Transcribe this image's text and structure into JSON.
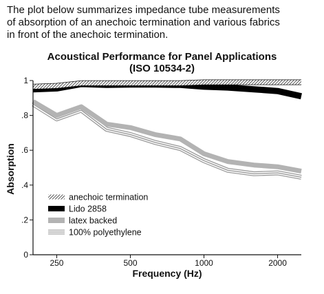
{
  "intro": {
    "line1": "The plot below summarizes impedance tube measurements",
    "line2": "of absorption of an anechoic termination and various fabrics",
    "line3": "in front of the anechoic termination."
  },
  "chart_data": {
    "type": "line",
    "title": "Acoustical Performance for Panel Applications",
    "subtitle": "(ISO 10534-2)",
    "xlabel": "Frequency (Hz)",
    "ylabel": "Absorption",
    "x_scale": "log",
    "xlim": [
      200,
      2500
    ],
    "ylim": [
      0,
      1
    ],
    "x_ticks": [
      250,
      500,
      1000,
      2000
    ],
    "x_tick_labels": [
      "250",
      "500",
      "1000",
      "2000"
    ],
    "y_ticks": [
      0,
      0.2,
      0.4,
      0.6,
      0.8,
      1
    ],
    "y_tick_labels": [
      "0",
      ".2",
      ".4",
      ".6",
      ".8",
      "1"
    ],
    "grid": false,
    "legend_position": "bottom-left",
    "x": [
      200,
      250,
      315,
      400,
      500,
      630,
      800,
      1000,
      1250,
      1600,
      2000,
      2500
    ],
    "series": [
      {
        "name": "anechoic termination",
        "style": "hatched",
        "color": "#222222",
        "values": [
          0.965,
          0.97,
          0.985,
          0.985,
          0.985,
          0.985,
          0.985,
          0.99,
          0.99,
          0.99,
          0.99,
          0.99
        ]
      },
      {
        "name": "Lido 2858",
        "style": "solid-thick",
        "color": "#000000",
        "values": [
          0.95,
          0.955,
          0.98,
          0.975,
          0.977,
          0.977,
          0.975,
          0.965,
          0.96,
          0.95,
          0.94,
          0.91
        ]
      },
      {
        "name": "latex backed",
        "style": "solid-thick",
        "color": "#b3b3b3",
        "values": [
          0.88,
          0.8,
          0.85,
          0.75,
          0.73,
          0.69,
          0.665,
          0.58,
          0.535,
          0.515,
          0.505,
          0.48
        ]
      },
      {
        "name": "100% polyethylene",
        "style": "triple-line",
        "color": "#9a9a9a",
        "values": [
          0.865,
          0.78,
          0.83,
          0.72,
          0.69,
          0.645,
          0.61,
          0.54,
          0.485,
          0.465,
          0.47,
          0.445
        ]
      }
    ]
  }
}
